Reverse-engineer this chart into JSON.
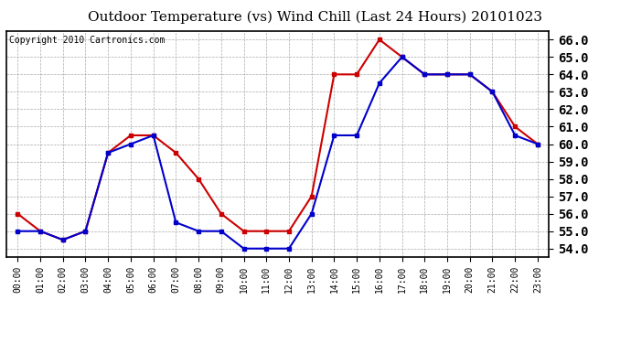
{
  "title": "Outdoor Temperature (vs) Wind Chill (Last 24 Hours) 20101023",
  "copyright": "Copyright 2010 Cartronics.com",
  "hours": [
    0,
    1,
    2,
    3,
    4,
    5,
    6,
    7,
    8,
    9,
    10,
    11,
    12,
    13,
    14,
    15,
    16,
    17,
    18,
    19,
    20,
    21,
    22,
    23
  ],
  "temp": [
    56.0,
    55.0,
    54.5,
    55.0,
    59.5,
    60.5,
    60.5,
    59.5,
    58.0,
    56.0,
    55.0,
    55.0,
    55.0,
    57.0,
    64.0,
    64.0,
    66.0,
    65.0,
    64.0,
    64.0,
    64.0,
    63.0,
    61.0,
    60.0
  ],
  "windchill": [
    55.0,
    55.0,
    54.5,
    55.0,
    59.5,
    60.0,
    60.5,
    55.5,
    55.0,
    55.0,
    54.0,
    54.0,
    54.0,
    56.0,
    60.5,
    60.5,
    63.5,
    65.0,
    64.0,
    64.0,
    64.0,
    63.0,
    60.5,
    60.0
  ],
  "temp_color": "#cc0000",
  "windchill_color": "#0000cc",
  "ylim": [
    53.5,
    66.5
  ],
  "yticks": [
    54.0,
    55.0,
    56.0,
    57.0,
    58.0,
    59.0,
    60.0,
    61.0,
    62.0,
    63.0,
    64.0,
    65.0,
    66.0
  ],
  "bg_color": "#ffffff",
  "plot_bg_color": "#ffffff",
  "grid_color": "#aaaaaa",
  "title_fontsize": 11,
  "copyright_fontsize": 7,
  "ytick_fontsize": 10,
  "xtick_fontsize": 7,
  "marker": "s",
  "markersize": 3,
  "linewidth": 1.5
}
